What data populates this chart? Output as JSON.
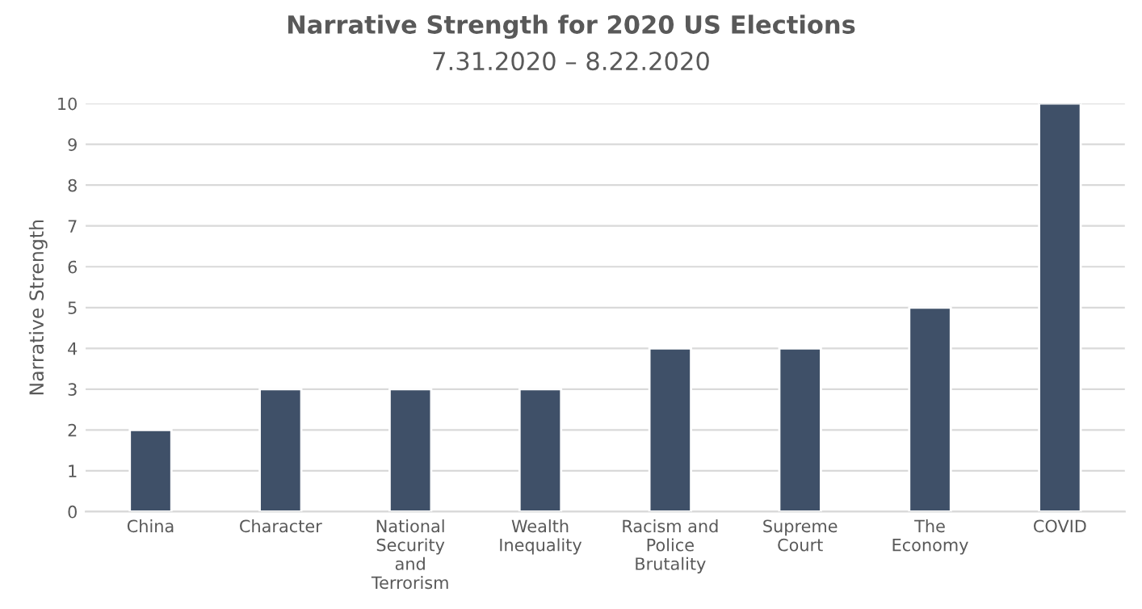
{
  "chart_data": {
    "type": "bar",
    "title": "Narrative Strength for 2020 US Elections",
    "subtitle": "7.31.2020 – 8.22.2020",
    "ylabel": "Narrative Strength",
    "categories": [
      "China",
      "Character",
      "National Security and Terrorism",
      "Wealth Inequality",
      "Racism and Police Brutality",
      "Supreme Court",
      "The Economy",
      "COVID"
    ],
    "values": [
      2,
      3,
      3,
      3,
      4,
      4,
      5,
      10
    ],
    "color": "#3f5068",
    "ylim": [
      0,
      10
    ],
    "yticks": [
      0,
      1,
      2,
      3,
      4,
      5,
      6,
      7,
      8,
      9,
      10
    ],
    "grid": "y",
    "legend": false
  }
}
